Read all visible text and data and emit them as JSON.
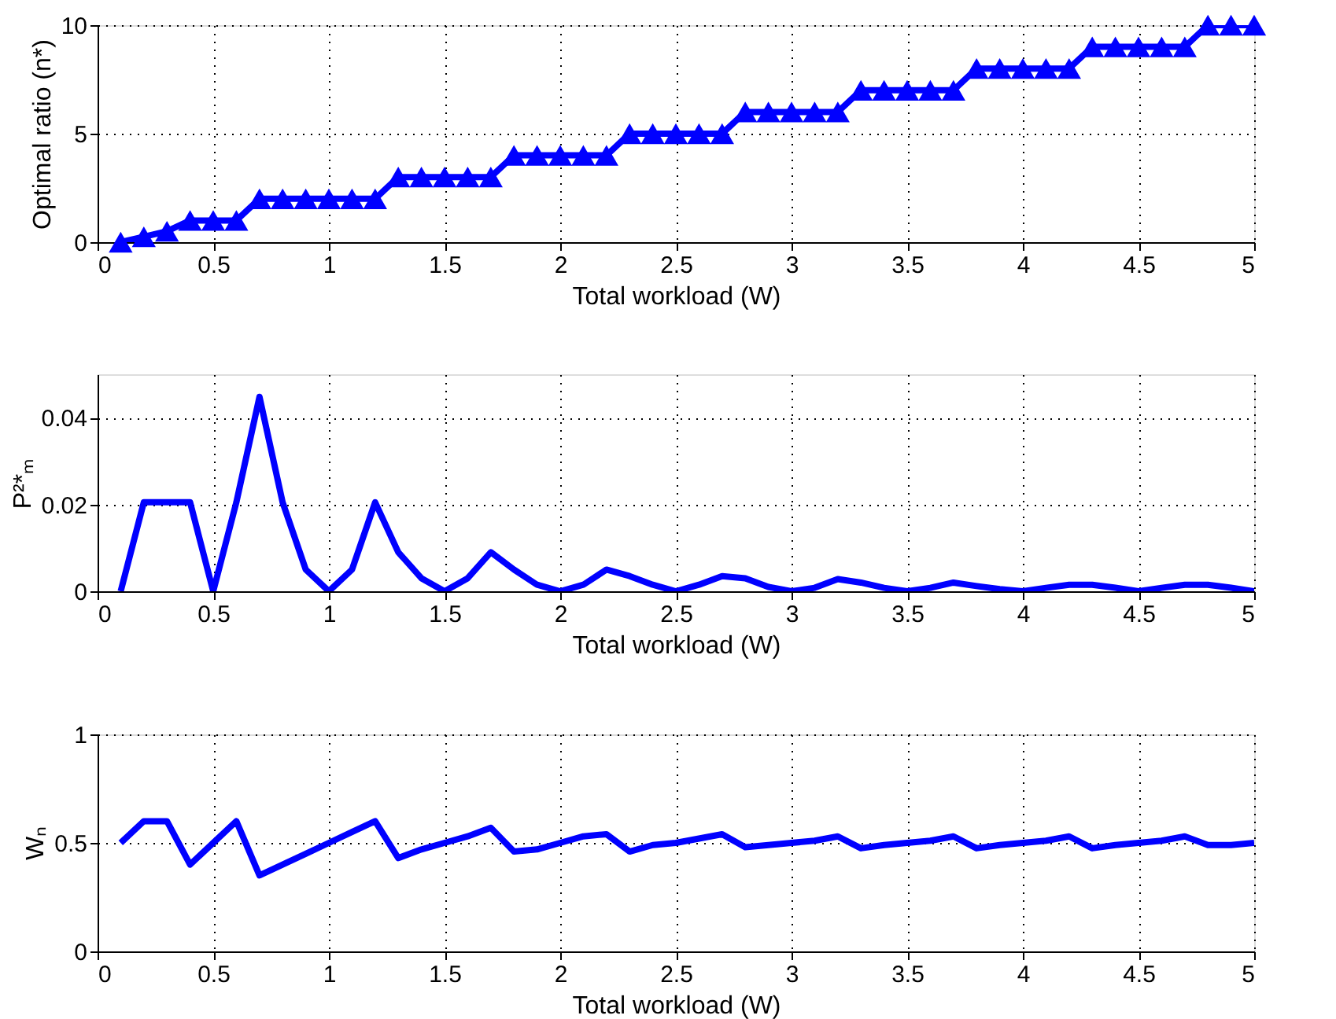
{
  "chart_data": [
    {
      "type": "line",
      "xlabel": "Total workload (W)",
      "ylabel": "Optimal ratio (n*)",
      "marker": "triangle",
      "grid": true,
      "line_style": "solid",
      "xlim": [
        0,
        5
      ],
      "xticks": [
        0,
        0.5,
        1,
        1.5,
        2,
        2.5,
        3,
        3.5,
        4,
        4.5,
        5
      ],
      "ylim": [
        0,
        10
      ],
      "yticks": [
        0,
        5,
        10
      ],
      "x": [
        0.1,
        0.2,
        0.3,
        0.4,
        0.5,
        0.6,
        0.7,
        0.8,
        0.9,
        1.0,
        1.1,
        1.2,
        1.3,
        1.4,
        1.5,
        1.6,
        1.7,
        1.8,
        1.9,
        2.0,
        2.1,
        2.2,
        2.3,
        2.4,
        2.5,
        2.6,
        2.7,
        2.8,
        2.9,
        3.0,
        3.1,
        3.2,
        3.3,
        3.4,
        3.5,
        3.6,
        3.7,
        3.8,
        3.9,
        4.0,
        4.1,
        4.2,
        4.3,
        4.4,
        4.5,
        4.6,
        4.7,
        4.8,
        4.9,
        5.0
      ],
      "series": [
        {
          "color": "#0000ff",
          "values": [
            0,
            0.25,
            0.5,
            1,
            1,
            1,
            2,
            2,
            2,
            2,
            2,
            2,
            3,
            3,
            3,
            3,
            3,
            4,
            4,
            4,
            4,
            4,
            5,
            5,
            5,
            5,
            5,
            6,
            6,
            6,
            6,
            6,
            7,
            7,
            7,
            7,
            7,
            8,
            8,
            8,
            8,
            8,
            9,
            9,
            9,
            9,
            9,
            10,
            10,
            10
          ]
        }
      ]
    },
    {
      "type": "line",
      "xlabel": "Total workload (W)",
      "ylabel": "P²*ₘ",
      "grid": true,
      "line_style": "solid",
      "xlim": [
        0,
        5
      ],
      "xticks": [
        0,
        0.5,
        1,
        1.5,
        2,
        2.5,
        3,
        3.5,
        4,
        4.5,
        5
      ],
      "ylim": [
        0,
        0.05
      ],
      "yticks": [
        0,
        0.02,
        0.04
      ],
      "x": [
        0.1,
        0.2,
        0.3,
        0.4,
        0.5,
        0.6,
        0.7,
        0.8,
        0.9,
        1.0,
        1.1,
        1.2,
        1.3,
        1.4,
        1.5,
        1.6,
        1.7,
        1.8,
        1.9,
        2.0,
        2.1,
        2.2,
        2.3,
        2.4,
        2.5,
        2.6,
        2.7,
        2.8,
        2.9,
        3.0,
        3.1,
        3.2,
        3.3,
        3.4,
        3.5,
        3.6,
        3.7,
        3.8,
        3.9,
        4.0,
        4.1,
        4.2,
        4.3,
        4.4,
        4.5,
        4.6,
        4.7,
        4.8,
        4.9,
        5.0
      ],
      "series": [
        {
          "color": "#0000ff",
          "values": [
            0,
            0.0205,
            0.0205,
            0.0205,
            0,
            0.0205,
            0.0448,
            0.0205,
            0.005,
            0,
            0.005,
            0.0205,
            0.009,
            0.003,
            0,
            0.003,
            0.009,
            0.005,
            0.0015,
            0,
            0.0015,
            0.005,
            0.0035,
            0.0015,
            0,
            0.0015,
            0.0035,
            0.003,
            0.001,
            0,
            0.0008,
            0.0028,
            0.002,
            0.0008,
            0,
            0.0008,
            0.002,
            0.0012,
            0.0005,
            0,
            0.0008,
            0.0015,
            0.0015,
            0.0008,
            0,
            0.0008,
            0.0015,
            0.0015,
            0.0008,
            0
          ]
        }
      ]
    },
    {
      "type": "line",
      "xlabel": "Total workload (W)",
      "ylabel": "Wₙ",
      "grid": true,
      "line_style": "solid",
      "xlim": [
        0,
        5
      ],
      "xticks": [
        0,
        0.5,
        1,
        1.5,
        2,
        2.5,
        3,
        3.5,
        4,
        4.5,
        5
      ],
      "ylim": [
        0,
        1
      ],
      "yticks": [
        0,
        0.5,
        1
      ],
      "x": [
        0.1,
        0.2,
        0.3,
        0.4,
        0.5,
        0.6,
        0.7,
        0.8,
        0.9,
        1.0,
        1.1,
        1.2,
        1.3,
        1.4,
        1.5,
        1.6,
        1.7,
        1.8,
        1.9,
        2.0,
        2.1,
        2.2,
        2.3,
        2.4,
        2.5,
        2.6,
        2.7,
        2.8,
        2.9,
        3.0,
        3.1,
        3.2,
        3.3,
        3.4,
        3.5,
        3.6,
        3.7,
        3.8,
        3.9,
        4.0,
        4.1,
        4.2,
        4.3,
        4.4,
        4.5,
        4.6,
        4.7,
        4.8,
        4.9,
        5.0
      ],
      "series": [
        {
          "color": "#0000ff",
          "values": [
            0.5,
            0.6,
            0.6,
            0.4,
            0.5,
            0.6,
            0.35,
            0.4,
            0.45,
            0.5,
            0.55,
            0.6,
            0.43,
            0.47,
            0.5,
            0.53,
            0.57,
            0.46,
            0.47,
            0.5,
            0.53,
            0.54,
            0.46,
            0.49,
            0.5,
            0.52,
            0.54,
            0.48,
            0.49,
            0.5,
            0.51,
            0.53,
            0.475,
            0.49,
            0.5,
            0.51,
            0.53,
            0.475,
            0.49,
            0.5,
            0.51,
            0.53,
            0.475,
            0.49,
            0.5,
            0.51,
            0.53,
            0.49,
            0.49,
            0.5
          ]
        }
      ]
    }
  ]
}
